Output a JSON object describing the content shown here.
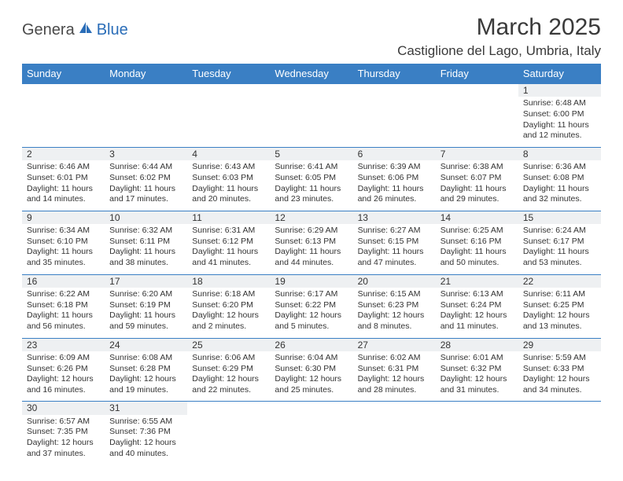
{
  "brand": {
    "part1": "Genera",
    "part2": "Blue"
  },
  "title": "March 2025",
  "location": "Castiglione del Lago, Umbria, Italy",
  "colors": {
    "header_bg": "#3a7fc4",
    "header_fg": "#ffffff",
    "daynum_bg": "#eef0f2",
    "border": "#3a7fc4",
    "text": "#333333",
    "brand_gray": "#4a4a4a",
    "brand_blue": "#2a6db8"
  },
  "weekdays": [
    "Sunday",
    "Monday",
    "Tuesday",
    "Wednesday",
    "Thursday",
    "Friday",
    "Saturday"
  ],
  "weeks": [
    [
      null,
      null,
      null,
      null,
      null,
      null,
      {
        "n": "1",
        "sr": "Sunrise: 6:48 AM",
        "ss": "Sunset: 6:00 PM",
        "d1": "Daylight: 11 hours",
        "d2": "and 12 minutes."
      }
    ],
    [
      {
        "n": "2",
        "sr": "Sunrise: 6:46 AM",
        "ss": "Sunset: 6:01 PM",
        "d1": "Daylight: 11 hours",
        "d2": "and 14 minutes."
      },
      {
        "n": "3",
        "sr": "Sunrise: 6:44 AM",
        "ss": "Sunset: 6:02 PM",
        "d1": "Daylight: 11 hours",
        "d2": "and 17 minutes."
      },
      {
        "n": "4",
        "sr": "Sunrise: 6:43 AM",
        "ss": "Sunset: 6:03 PM",
        "d1": "Daylight: 11 hours",
        "d2": "and 20 minutes."
      },
      {
        "n": "5",
        "sr": "Sunrise: 6:41 AM",
        "ss": "Sunset: 6:05 PM",
        "d1": "Daylight: 11 hours",
        "d2": "and 23 minutes."
      },
      {
        "n": "6",
        "sr": "Sunrise: 6:39 AM",
        "ss": "Sunset: 6:06 PM",
        "d1": "Daylight: 11 hours",
        "d2": "and 26 minutes."
      },
      {
        "n": "7",
        "sr": "Sunrise: 6:38 AM",
        "ss": "Sunset: 6:07 PM",
        "d1": "Daylight: 11 hours",
        "d2": "and 29 minutes."
      },
      {
        "n": "8",
        "sr": "Sunrise: 6:36 AM",
        "ss": "Sunset: 6:08 PM",
        "d1": "Daylight: 11 hours",
        "d2": "and 32 minutes."
      }
    ],
    [
      {
        "n": "9",
        "sr": "Sunrise: 6:34 AM",
        "ss": "Sunset: 6:10 PM",
        "d1": "Daylight: 11 hours",
        "d2": "and 35 minutes."
      },
      {
        "n": "10",
        "sr": "Sunrise: 6:32 AM",
        "ss": "Sunset: 6:11 PM",
        "d1": "Daylight: 11 hours",
        "d2": "and 38 minutes."
      },
      {
        "n": "11",
        "sr": "Sunrise: 6:31 AM",
        "ss": "Sunset: 6:12 PM",
        "d1": "Daylight: 11 hours",
        "d2": "and 41 minutes."
      },
      {
        "n": "12",
        "sr": "Sunrise: 6:29 AM",
        "ss": "Sunset: 6:13 PM",
        "d1": "Daylight: 11 hours",
        "d2": "and 44 minutes."
      },
      {
        "n": "13",
        "sr": "Sunrise: 6:27 AM",
        "ss": "Sunset: 6:15 PM",
        "d1": "Daylight: 11 hours",
        "d2": "and 47 minutes."
      },
      {
        "n": "14",
        "sr": "Sunrise: 6:25 AM",
        "ss": "Sunset: 6:16 PM",
        "d1": "Daylight: 11 hours",
        "d2": "and 50 minutes."
      },
      {
        "n": "15",
        "sr": "Sunrise: 6:24 AM",
        "ss": "Sunset: 6:17 PM",
        "d1": "Daylight: 11 hours",
        "d2": "and 53 minutes."
      }
    ],
    [
      {
        "n": "16",
        "sr": "Sunrise: 6:22 AM",
        "ss": "Sunset: 6:18 PM",
        "d1": "Daylight: 11 hours",
        "d2": "and 56 minutes."
      },
      {
        "n": "17",
        "sr": "Sunrise: 6:20 AM",
        "ss": "Sunset: 6:19 PM",
        "d1": "Daylight: 11 hours",
        "d2": "and 59 minutes."
      },
      {
        "n": "18",
        "sr": "Sunrise: 6:18 AM",
        "ss": "Sunset: 6:20 PM",
        "d1": "Daylight: 12 hours",
        "d2": "and 2 minutes."
      },
      {
        "n": "19",
        "sr": "Sunrise: 6:17 AM",
        "ss": "Sunset: 6:22 PM",
        "d1": "Daylight: 12 hours",
        "d2": "and 5 minutes."
      },
      {
        "n": "20",
        "sr": "Sunrise: 6:15 AM",
        "ss": "Sunset: 6:23 PM",
        "d1": "Daylight: 12 hours",
        "d2": "and 8 minutes."
      },
      {
        "n": "21",
        "sr": "Sunrise: 6:13 AM",
        "ss": "Sunset: 6:24 PM",
        "d1": "Daylight: 12 hours",
        "d2": "and 11 minutes."
      },
      {
        "n": "22",
        "sr": "Sunrise: 6:11 AM",
        "ss": "Sunset: 6:25 PM",
        "d1": "Daylight: 12 hours",
        "d2": "and 13 minutes."
      }
    ],
    [
      {
        "n": "23",
        "sr": "Sunrise: 6:09 AM",
        "ss": "Sunset: 6:26 PM",
        "d1": "Daylight: 12 hours",
        "d2": "and 16 minutes."
      },
      {
        "n": "24",
        "sr": "Sunrise: 6:08 AM",
        "ss": "Sunset: 6:28 PM",
        "d1": "Daylight: 12 hours",
        "d2": "and 19 minutes."
      },
      {
        "n": "25",
        "sr": "Sunrise: 6:06 AM",
        "ss": "Sunset: 6:29 PM",
        "d1": "Daylight: 12 hours",
        "d2": "and 22 minutes."
      },
      {
        "n": "26",
        "sr": "Sunrise: 6:04 AM",
        "ss": "Sunset: 6:30 PM",
        "d1": "Daylight: 12 hours",
        "d2": "and 25 minutes."
      },
      {
        "n": "27",
        "sr": "Sunrise: 6:02 AM",
        "ss": "Sunset: 6:31 PM",
        "d1": "Daylight: 12 hours",
        "d2": "and 28 minutes."
      },
      {
        "n": "28",
        "sr": "Sunrise: 6:01 AM",
        "ss": "Sunset: 6:32 PM",
        "d1": "Daylight: 12 hours",
        "d2": "and 31 minutes."
      },
      {
        "n": "29",
        "sr": "Sunrise: 5:59 AM",
        "ss": "Sunset: 6:33 PM",
        "d1": "Daylight: 12 hours",
        "d2": "and 34 minutes."
      }
    ],
    [
      {
        "n": "30",
        "sr": "Sunrise: 6:57 AM",
        "ss": "Sunset: 7:35 PM",
        "d1": "Daylight: 12 hours",
        "d2": "and 37 minutes."
      },
      {
        "n": "31",
        "sr": "Sunrise: 6:55 AM",
        "ss": "Sunset: 7:36 PM",
        "d1": "Daylight: 12 hours",
        "d2": "and 40 minutes."
      },
      null,
      null,
      null,
      null,
      null
    ]
  ]
}
